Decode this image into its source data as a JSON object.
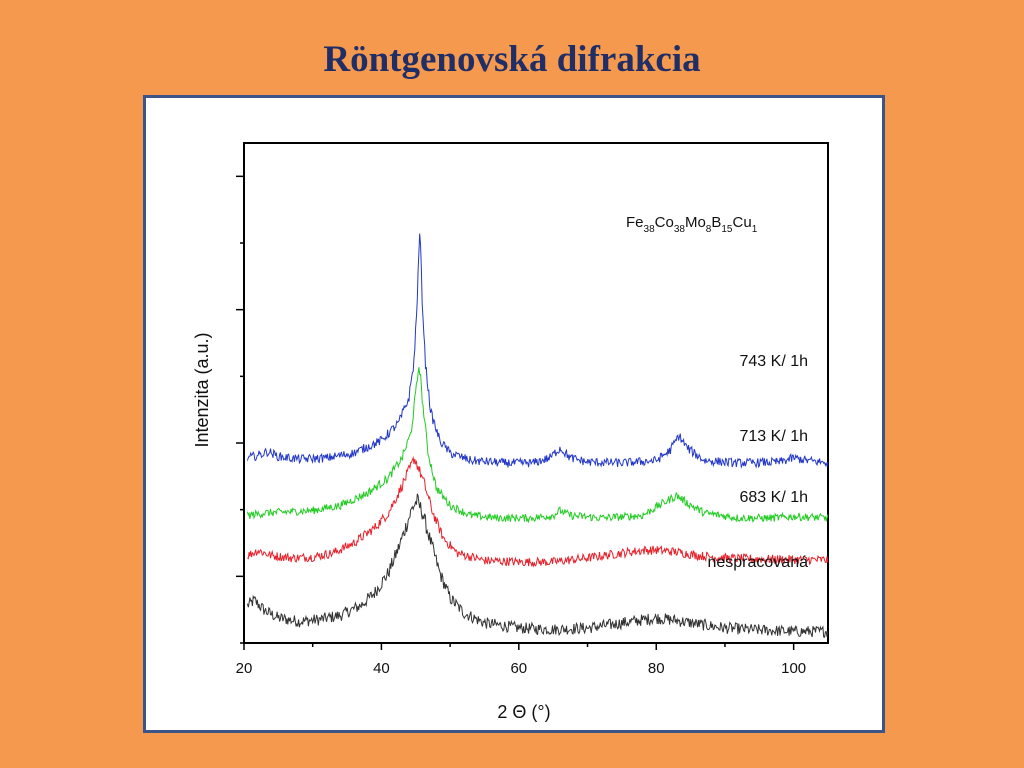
{
  "slide": {
    "title": "Röntgenovská  difrakcia"
  },
  "chart_data": {
    "type": "line",
    "title": "",
    "xlabel": "2 Θ (°)",
    "ylabel": "Intenzita (a.u.)",
    "xlim": [
      20,
      105
    ],
    "xticks": [
      "20",
      "40",
      "60",
      "80",
      "100"
    ],
    "y_units": "arbitrary",
    "ylim": [
      0,
      100
    ],
    "grid": false,
    "annotation": {
      "parts": [
        {
          "t": "Fe",
          "sub": false
        },
        {
          "t": "38",
          "sub": true
        },
        {
          "t": "Co",
          "sub": false
        },
        {
          "t": "38",
          "sub": true
        },
        {
          "t": "Mo",
          "sub": false
        },
        {
          "t": "8",
          "sub": true
        },
        {
          "t": "B",
          "sub": false
        },
        {
          "t": "15",
          "sub": true
        },
        {
          "t": "Cu",
          "sub": false
        },
        {
          "t": "1",
          "sub": true
        }
      ]
    },
    "series": [
      {
        "name": "nespracovaná",
        "color": "#333333",
        "x": [
          20.5,
          21.5,
          23,
          25,
          28,
          31,
          34,
          37,
          39,
          41,
          42.5,
          43.5,
          44.5,
          45.2,
          46,
          47,
          48.5,
          50,
          52,
          55,
          60,
          65,
          70,
          75,
          78,
          80,
          83,
          86,
          90,
          95,
          100,
          105
        ],
        "y": [
          7.5,
          8.5,
          6.5,
          5.0,
          4.3,
          4.7,
          5.5,
          7.5,
          10.0,
          14.0,
          19.0,
          23.0,
          27.0,
          28.5,
          26.0,
          21.0,
          14.0,
          9.0,
          6.0,
          4.0,
          3.0,
          2.7,
          3.0,
          4.0,
          4.6,
          5.0,
          4.5,
          3.8,
          3.0,
          2.6,
          2.3,
          2.3
        ]
      },
      {
        "name": "683 K/ 1h",
        "color": "#E8202A",
        "x": [
          20.5,
          22,
          24,
          27,
          30,
          33,
          36,
          39,
          41,
          42.5,
          43.5,
          44.2,
          44.8,
          45.4,
          46.2,
          47.5,
          49,
          51,
          55,
          60,
          65,
          70,
          75,
          78,
          80,
          83,
          86,
          90,
          95,
          100,
          105
        ],
        "y": [
          17.5,
          18.5,
          17.5,
          17.0,
          17.2,
          18.0,
          20.0,
          23.0,
          26.0,
          30.0,
          33.0,
          35.0,
          37.0,
          35.0,
          32.0,
          26.0,
          21.0,
          18.0,
          16.5,
          16.2,
          16.2,
          17.0,
          18.0,
          18.5,
          18.6,
          18.2,
          17.5,
          17.0,
          16.8,
          16.7,
          16.6
        ]
      },
      {
        "name": "713 K/ 1h",
        "color": "#22CC22",
        "x": [
          20.5,
          23,
          26,
          30,
          34,
          38,
          41,
          43,
          44.3,
          45.0,
          45.5,
          46.0,
          46.8,
          48,
          50,
          53,
          57,
          62,
          65,
          66,
          67.5,
          72,
          78,
          81,
          83,
          84.5,
          87,
          92,
          97,
          100,
          105
        ],
        "y": [
          25.5,
          26.0,
          26.2,
          26.5,
          27.5,
          30.0,
          33.0,
          37.0,
          42.0,
          50.0,
          56.0,
          48.0,
          38.0,
          31.0,
          27.5,
          25.5,
          25.0,
          25.0,
          25.5,
          26.5,
          25.5,
          25.0,
          25.5,
          28.0,
          29.5,
          28.0,
          26.0,
          25.0,
          25.0,
          25.3,
          25.0
        ]
      },
      {
        "name": "743 K/ 1h",
        "color": "#2438C8",
        "x": [
          20.5,
          22,
          23.5,
          25,
          28,
          32,
          36,
          40,
          42.5,
          44,
          44.8,
          45.3,
          45.6,
          45.9,
          46.4,
          47.2,
          48.5,
          50,
          53,
          58,
          62,
          64.5,
          66,
          67.5,
          70,
          75,
          80,
          82,
          83.3,
          84.5,
          87,
          92,
          98,
          100,
          102,
          105
        ],
        "y": [
          37.0,
          37.5,
          38.3,
          37.3,
          36.8,
          37.0,
          38.0,
          40.5,
          44.0,
          49.0,
          57.0,
          72.0,
          83.0,
          70.0,
          56.0,
          46.0,
          40.5,
          38.0,
          36.5,
          36.0,
          36.0,
          37.0,
          39.0,
          37.0,
          36.2,
          36.0,
          36.5,
          38.5,
          41.5,
          39.0,
          36.5,
          36.0,
          36.2,
          37.0,
          36.5,
          36.0
        ]
      }
    ]
  }
}
